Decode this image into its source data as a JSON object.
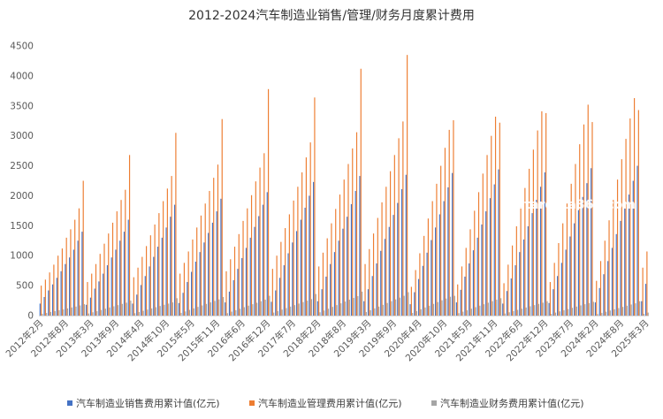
{
  "chart_data": {
    "type": "bar",
    "title": "2012-2024汽车制造业销售/管理/财务月度累计费用",
    "ylim": [
      0,
      4500
    ],
    "yticks": [
      0,
      500,
      1000,
      1500,
      2000,
      2500,
      3000,
      3500,
      4000,
      4500
    ],
    "grid": false,
    "legend_position": "bottom",
    "watermark": "stardata360.com",
    "x_tick_labels": [
      "2012年2月",
      "2012年8月",
      "2013年3月",
      "2013年9月",
      "2014年4月",
      "2014年10月",
      "2015年5月",
      "2015年11月",
      "2016年6月",
      "2016年12月",
      "2017年7月",
      "2018年2月",
      "2018年8月",
      "2019年3月",
      "2019年9月",
      "2020年4月",
      "2020年10月",
      "2021年5月",
      "2021年11月",
      "2022年6月",
      "2022年12月",
      "2023年7月",
      "2024年2月",
      "2024年8月",
      "2025年3月"
    ],
    "x": [
      "2012年2月",
      "2012年3月",
      "2012年4月",
      "2012年5月",
      "2012年6月",
      "2012年7月",
      "2012年8月",
      "2012年9月",
      "2012年10月",
      "2012年11月",
      "2012年12月",
      "2013年2月",
      "2013年3月",
      "2013年4月",
      "2013年5月",
      "2013年6月",
      "2013年7月",
      "2013年8月",
      "2013年9月",
      "2013年10月",
      "2013年11月",
      "2013年12月",
      "2014年2月",
      "2014年3月",
      "2014年4月",
      "2014年5月",
      "2014年6月",
      "2014年7月",
      "2014年8月",
      "2014年9月",
      "2014年10月",
      "2014年11月",
      "2014年12月",
      "2015年2月",
      "2015年3月",
      "2015年4月",
      "2015年5月",
      "2015年6月",
      "2015年7月",
      "2015年8月",
      "2015年9月",
      "2015年10月",
      "2015年11月",
      "2015年12月",
      "2016年2月",
      "2016年3月",
      "2016年4月",
      "2016年5月",
      "2016年6月",
      "2016年7月",
      "2016年8月",
      "2016年9月",
      "2016年10月",
      "2016年11月",
      "2016年12月",
      "2017年2月",
      "2017年3月",
      "2017年4月",
      "2017年5月",
      "2017年6月",
      "2017年7月",
      "2017年8月",
      "2017年9月",
      "2017年10月",
      "2017年11月",
      "2017年12月",
      "2018年2月",
      "2018年3月",
      "2018年4月",
      "2018年5月",
      "2018年6月",
      "2018年7月",
      "2018年8月",
      "2018年9月",
      "2018年10月",
      "2018年11月",
      "2018年12月",
      "2019年2月",
      "2019年3月",
      "2019年4月",
      "2019年5月",
      "2019年6月",
      "2019年7月",
      "2019年8月",
      "2019年9月",
      "2019年10月",
      "2019年11月",
      "2019年12月",
      "2020年2月",
      "2020年3月",
      "2020年4月",
      "2020年5月",
      "2020年6月",
      "2020年7月",
      "2020年8月",
      "2020年9月",
      "2020年10月",
      "2020年11月",
      "2020年12月",
      "2021年2月",
      "2021年3月",
      "2021年4月",
      "2021年5月",
      "2021年6月",
      "2021年7月",
      "2021年8月",
      "2021年9月",
      "2021年10月",
      "2021年11月",
      "2021年12月",
      "2022年2月",
      "2022年3月",
      "2022年4月",
      "2022年5月",
      "2022年6月",
      "2022年7月",
      "2022年8月",
      "2022年9月",
      "2022年10月",
      "2022年11月",
      "2022年12月",
      "2023年2月",
      "2023年3月",
      "2023年4月",
      "2023年5月",
      "2023年6月",
      "2023年7月",
      "2023年8月",
      "2023年9月",
      "2023年10月",
      "2023年11月",
      "2023年12月",
      "2024年2月",
      "2024年3月",
      "2024年4月",
      "2024年5月",
      "2024年6月",
      "2024年7月",
      "2024年8月",
      "2024年9月",
      "2024年10月",
      "2024年11月",
      "2024年12月",
      "2025年2月",
      "2025年3月"
    ],
    "series": [
      {
        "name": "汽车制造业销售费用累计值(亿元)",
        "color": "#4472C4",
        "values": [
          200,
          310,
          420,
          520,
          630,
          740,
          860,
          970,
          1100,
          1250,
          1400,
          180,
          300,
          450,
          570,
          700,
          840,
          970,
          1100,
          1250,
          1400,
          1600,
          200,
          350,
          510,
          660,
          820,
          980,
          1150,
          1300,
          1470,
          1650,
          1850,
          210,
          380,
          560,
          730,
          900,
          1060,
          1220,
          1380,
          1550,
          1740,
          1950,
          220,
          400,
          590,
          780,
          960,
          1130,
          1300,
          1480,
          1660,
          1850,
          2060,
          230,
          420,
          630,
          840,
          1040,
          1220,
          1410,
          1600,
          1800,
          2000,
          2230,
          240,
          440,
          650,
          860,
          1060,
          1250,
          1450,
          1650,
          1860,
          2080,
          2330,
          240,
          440,
          660,
          870,
          1080,
          1280,
          1480,
          1680,
          1880,
          2110,
          2350,
          190,
          390,
          610,
          830,
          1050,
          1260,
          1470,
          1690,
          1910,
          2140,
          2380,
          220,
          430,
          650,
          870,
          1090,
          1300,
          1520,
          1740,
          1960,
          2190,
          2440,
          200,
          410,
          620,
          840,
          1060,
          1270,
          1490,
          1710,
          1930,
          2150,
          2390,
          210,
          440,
          660,
          880,
          1100,
          1320,
          1540,
          1760,
          1980,
          2210,
          2460,
          220,
          460,
          690,
          910,
          1130,
          1360,
          1580,
          1800,
          2020,
          2250,
          2500,
          240,
          530
        ]
      },
      {
        "name": "汽车制造业管理费用累计值(亿元)",
        "color": "#ED7D31",
        "values": [
          500,
          600,
          720,
          850,
          1000,
          1120,
          1300,
          1440,
          1600,
          1790,
          2250,
          560,
          700,
          860,
          1030,
          1200,
          1370,
          1550,
          1740,
          1930,
          2100,
          2680,
          640,
          800,
          980,
          1160,
          1340,
          1520,
          1710,
          1910,
          2120,
          2330,
          3050,
          700,
          880,
          1070,
          1270,
          1470,
          1670,
          1870,
          2080,
          2300,
          2520,
          3280,
          740,
          940,
          1150,
          1360,
          1580,
          1790,
          2010,
          2240,
          2470,
          2710,
          3780,
          780,
          1000,
          1230,
          1460,
          1690,
          1920,
          2150,
          2390,
          2640,
          2890,
          3640,
          820,
          1050,
          1290,
          1540,
          1780,
          2020,
          2270,
          2530,
          2790,
          3060,
          4120,
          860,
          1110,
          1370,
          1630,
          1890,
          2150,
          2410,
          2680,
          2960,
          3240,
          4350,
          480,
          760,
          1040,
          1330,
          1620,
          1910,
          2200,
          2500,
          2800,
          3100,
          3260,
          520,
          820,
          1130,
          1440,
          1750,
          2060,
          2370,
          2680,
          3000,
          3320,
          3220,
          540,
          850,
          1170,
          1490,
          1810,
          2130,
          2450,
          2770,
          3090,
          3410,
          3380,
          560,
          880,
          1210,
          1540,
          1870,
          2200,
          2530,
          2860,
          3190,
          3520,
          3230,
          580,
          910,
          1250,
          1590,
          1930,
          2270,
          2610,
          2950,
          3290,
          3630,
          3430,
          800,
          1070
        ]
      },
      {
        "name": "汽车制造业财务费用累计值(亿元)",
        "color": "#A5A5A5",
        "values": [
          30,
          45,
          60,
          75,
          90,
          105,
          120,
          135,
          150,
          170,
          190,
          35,
          55,
          75,
          95,
          115,
          135,
          155,
          175,
          195,
          215,
          250,
          40,
          60,
          80,
          100,
          120,
          140,
          160,
          180,
          200,
          220,
          290,
          45,
          70,
          95,
          120,
          145,
          170,
          195,
          220,
          245,
          270,
          310,
          40,
          65,
          90,
          115,
          140,
          165,
          190,
          215,
          240,
          265,
          330,
          50,
          75,
          100,
          125,
          150,
          175,
          200,
          225,
          250,
          275,
          360,
          55,
          85,
          115,
          145,
          175,
          205,
          235,
          265,
          295,
          325,
          400,
          60,
          90,
          120,
          150,
          180,
          210,
          240,
          270,
          300,
          330,
          390,
          45,
          75,
          105,
          135,
          165,
          195,
          225,
          255,
          285,
          315,
          330,
          40,
          65,
          90,
          115,
          140,
          165,
          190,
          215,
          240,
          265,
          290,
          35,
          55,
          75,
          95,
          115,
          135,
          155,
          175,
          195,
          215,
          240,
          30,
          50,
          70,
          90,
          110,
          130,
          150,
          170,
          190,
          210,
          230,
          25,
          45,
          65,
          85,
          105,
          125,
          145,
          165,
          185,
          205,
          240,
          30,
          50
        ]
      }
    ]
  }
}
